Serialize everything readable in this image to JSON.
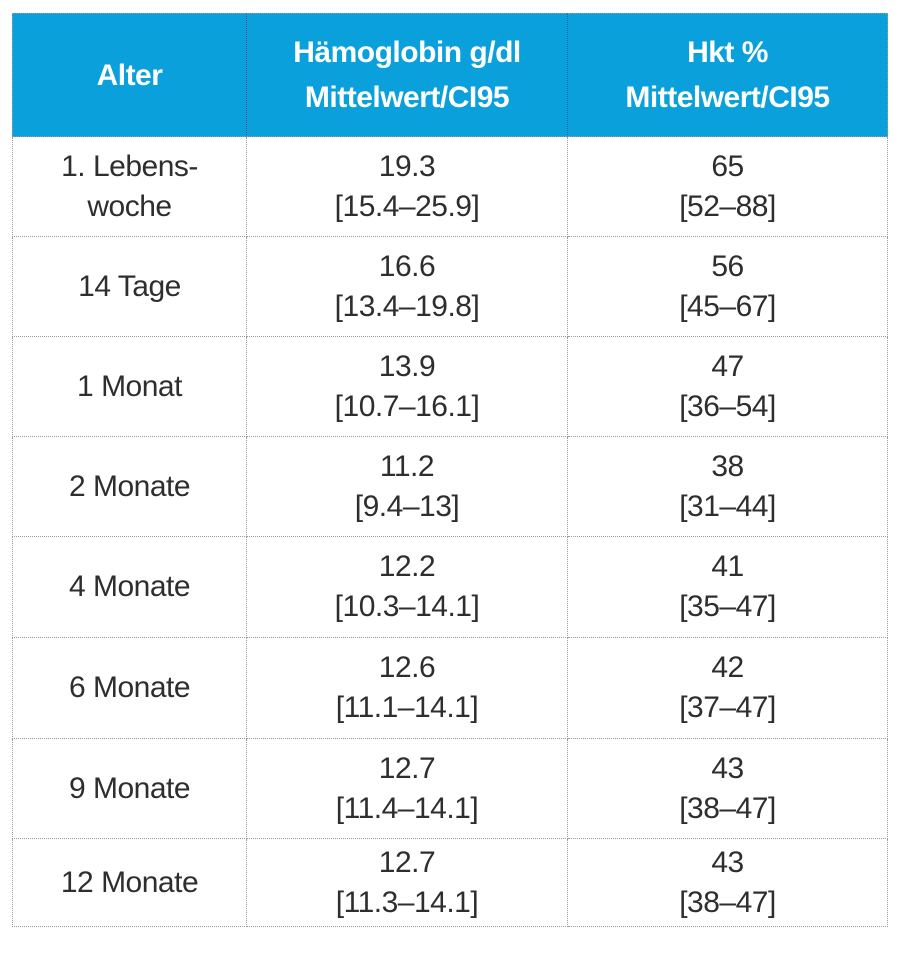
{
  "table": {
    "accent_color": "#0aa0dc",
    "header_text_color": "#ffffff",
    "body_text_color": "#2e2e2e",
    "border_color": "#9b9b9b",
    "header": {
      "age": "Alter",
      "hb_line1": "Hämoglobin g/dl",
      "hb_line2": "Mittelwert/CI95",
      "hkt_line1": "Hkt %",
      "hkt_line2": "Mittelwert/CI95"
    },
    "rows": [
      {
        "age": "1. Lebens-\nwoche",
        "hb_mean": "19.3",
        "hb_ci": "[15.4–25.9]",
        "hkt_mean": "65",
        "hkt_ci": "[52–88]"
      },
      {
        "age": "14 Tage",
        "hb_mean": "16.6",
        "hb_ci": "[13.4–19.8]",
        "hkt_mean": "56",
        "hkt_ci": "[45–67]"
      },
      {
        "age": "1 Monat",
        "hb_mean": "13.9",
        "hb_ci": "[10.7–16.1]",
        "hkt_mean": "47",
        "hkt_ci": "[36–54]"
      },
      {
        "age": "2 Monate",
        "hb_mean": "11.2",
        "hb_ci": "[9.4–13]",
        "hkt_mean": "38",
        "hkt_ci": "[31–44]"
      },
      {
        "age": "4 Monate",
        "hb_mean": "12.2",
        "hb_ci": "[10.3–14.1]",
        "hkt_mean": "41",
        "hkt_ci": "[35–47]"
      },
      {
        "age": "6 Monate",
        "hb_mean": "12.6",
        "hb_ci": "[11.1–14.1]",
        "hkt_mean": "42",
        "hkt_ci": "[37–47]"
      },
      {
        "age": "9 Monate",
        "hb_mean": "12.7",
        "hb_ci": "[11.4–14.1]",
        "hkt_mean": "43",
        "hkt_ci": "[38–47]"
      },
      {
        "age": "12 Monate",
        "hb_mean": "12.7",
        "hb_ci": "[11.3–14.1]",
        "hkt_mean": "43",
        "hkt_ci": "[38–47]"
      }
    ]
  }
}
